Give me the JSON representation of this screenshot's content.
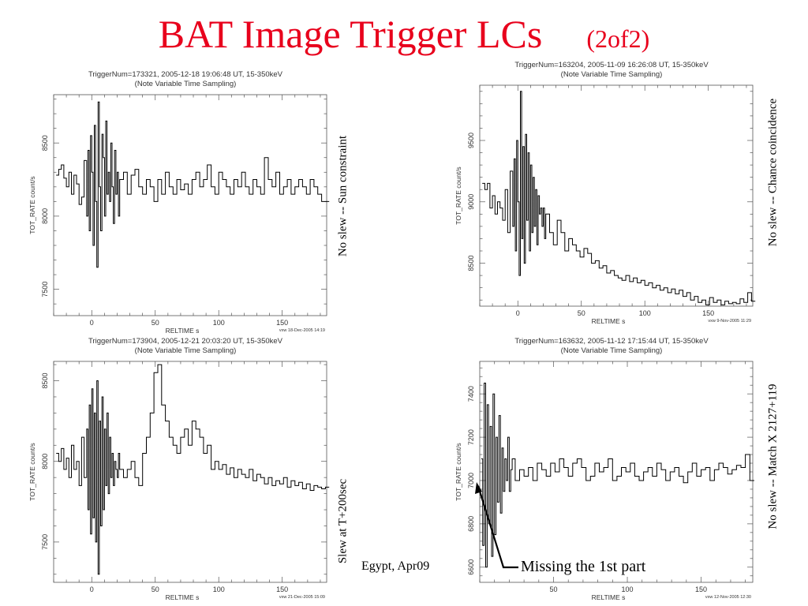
{
  "title": {
    "main": "BAT  Image Trigger  LCs",
    "sub": "(2of2)"
  },
  "footer": "Egypt, Apr09",
  "annotation": "Missing the 1st part",
  "chart_data": [
    {
      "type": "line",
      "title": "TriggerNum=173321, 2005-12-18 19:06:48 UT, 15-350keV",
      "subtitle": "(Note Variable Time Sampling)",
      "xlabel": "RELTIME  s",
      "ylabel": "TOT_RATE  count/s",
      "xlim": [
        -30,
        185
      ],
      "ylim": [
        7320,
        8830
      ],
      "xticks": [
        0,
        50,
        100,
        150
      ],
      "yticks": [
        7500,
        8000,
        8500
      ],
      "side_note": "No slew -- Sun constraint",
      "corner_stamp": "vxw 18-Dec-2005 14:19",
      "x": [
        -28,
        -26,
        -24,
        -22,
        -20,
        -18,
        -16,
        -14,
        -12,
        -10,
        -8,
        -6,
        -4,
        -3,
        -2,
        -1,
        0,
        1,
        2,
        3,
        4,
        5,
        6,
        7,
        8,
        9,
        10,
        11,
        12,
        13,
        14,
        15,
        16,
        17,
        18,
        19,
        20,
        21,
        22,
        25,
        28,
        31,
        34,
        37,
        40,
        43,
        46,
        49,
        52,
        55,
        58,
        61,
        64,
        67,
        70,
        73,
        76,
        79,
        82,
        85,
        88,
        91,
        94,
        97,
        100,
        103,
        106,
        109,
        112,
        115,
        118,
        121,
        124,
        127,
        130,
        133,
        136,
        139,
        142,
        145,
        148,
        151,
        154,
        157,
        160,
        163,
        166,
        169,
        172,
        175,
        178,
        181,
        184
      ],
      "values": [
        8280,
        8320,
        8350,
        8260,
        8200,
        8300,
        8150,
        8280,
        8220,
        8080,
        8130,
        8380,
        8000,
        8450,
        7900,
        8550,
        8300,
        7800,
        8620,
        8100,
        7650,
        8780,
        8200,
        7900,
        8560,
        8400,
        8000,
        8650,
        8150,
        8300,
        8100,
        8500,
        8200,
        7950,
        8450,
        8150,
        8300,
        8000,
        8250,
        8300,
        8150,
        8280,
        8320,
        8200,
        8150,
        8250,
        8200,
        8100,
        8250,
        8150,
        8300,
        8200,
        8150,
        8250,
        8180,
        8220,
        8150,
        8250,
        8300,
        8200,
        8250,
        8350,
        8200,
        8150,
        8300,
        8250,
        8200,
        8150,
        8250,
        8200,
        8300,
        8200,
        8150,
        8250,
        8200,
        8150,
        8400,
        8250,
        8200,
        8300,
        8150,
        8200,
        8250,
        8150,
        8200,
        8250,
        8200,
        8150,
        8250,
        8200,
        8150,
        8100,
        8100
      ]
    },
    {
      "type": "line",
      "title": "TriggerNum=163204, 2005-11-09 16:26:08 UT, 15-350keV",
      "subtitle": "(Note Variable Time Sampling)",
      "xlabel": "RELTIME  s",
      "ylabel": "TOT_RATE  count/s",
      "xlim": [
        -30,
        185
      ],
      "ylim": [
        8150,
        9950
      ],
      "xticks": [
        0,
        50,
        100,
        150
      ],
      "yticks": [
        8500,
        9000,
        9500
      ],
      "side_note": "No slew -- Chance coincidence",
      "corner_stamp": "vxw 9-Nov-2005 11:29",
      "x": [
        -28,
        -26,
        -24,
        -22,
        -20,
        -18,
        -16,
        -14,
        -12,
        -10,
        -8,
        -6,
        -4,
        -3,
        -2,
        -1,
        0,
        1,
        2,
        3,
        4,
        5,
        6,
        7,
        8,
        9,
        10,
        11,
        12,
        13,
        14,
        15,
        16,
        17,
        18,
        19,
        20,
        21,
        22,
        25,
        28,
        31,
        34,
        37,
        40,
        43,
        46,
        49,
        52,
        55,
        58,
        61,
        64,
        67,
        70,
        73,
        76,
        79,
        82,
        85,
        88,
        91,
        94,
        97,
        100,
        103,
        106,
        109,
        112,
        115,
        118,
        121,
        124,
        127,
        130,
        133,
        136,
        139,
        142,
        145,
        148,
        151,
        154,
        157,
        160,
        163,
        166,
        169,
        172,
        175,
        178,
        181,
        184
      ],
      "values": [
        9150,
        9100,
        9150,
        8950,
        9050,
        8900,
        9000,
        8950,
        8850,
        9100,
        8750,
        9250,
        8800,
        9350,
        8600,
        9500,
        9000,
        8400,
        9900,
        8700,
        9450,
        8500,
        9550,
        8850,
        9400,
        8600,
        9300,
        8750,
        9200,
        8800,
        9100,
        8650,
        9050,
        8900,
        8950,
        8800,
        8950,
        8700,
        8900,
        8750,
        8650,
        8850,
        8750,
        8600,
        8700,
        8650,
        8600,
        8550,
        8620,
        8580,
        8500,
        8520,
        8460,
        8480,
        8420,
        8440,
        8400,
        8380,
        8360,
        8400,
        8350,
        8380,
        8340,
        8360,
        8320,
        8340,
        8300,
        8320,
        8280,
        8300,
        8260,
        8290,
        8250,
        8280,
        8230,
        8260,
        8200,
        8230,
        8180,
        8200,
        8160,
        8220,
        8180,
        8200,
        8160,
        8190,
        8170,
        8180,
        8170,
        8210,
        8180,
        8260,
        8190
      ]
    },
    {
      "type": "line",
      "title": "TriggerNum=173904, 2005-12-21 20:03:20 UT, 15-350keV",
      "subtitle": "(Note Variable Time Sampling)",
      "xlabel": "RELTIME  s",
      "ylabel": "TOT_RATE  count/s",
      "xlim": [
        -30,
        185
      ],
      "ylim": [
        7250,
        8620
      ],
      "xticks": [
        0,
        50,
        100,
        150
      ],
      "yticks": [
        7500,
        8000,
        8500
      ],
      "side_note": "Slew at T+200sec",
      "corner_stamp": "vxw 21-Dec-2005 15:09",
      "x": [
        -28,
        -26,
        -24,
        -22,
        -20,
        -18,
        -16,
        -14,
        -12,
        -10,
        -8,
        -6,
        -4,
        -3,
        -2,
        -1,
        0,
        1,
        2,
        3,
        4,
        5,
        6,
        7,
        8,
        9,
        10,
        11,
        12,
        13,
        14,
        15,
        16,
        17,
        18,
        19,
        20,
        21,
        22,
        25,
        28,
        31,
        34,
        37,
        40,
        43,
        46,
        49,
        52,
        55,
        58,
        61,
        64,
        67,
        70,
        73,
        76,
        79,
        82,
        85,
        88,
        91,
        94,
        97,
        100,
        103,
        106,
        109,
        112,
        115,
        118,
        121,
        124,
        127,
        130,
        133,
        136,
        139,
        142,
        145,
        148,
        151,
        154,
        157,
        160,
        163,
        166,
        169,
        172,
        175,
        178,
        181,
        184
      ],
      "values": [
        8050,
        8000,
        8080,
        7950,
        8020,
        7900,
        8100,
        7950,
        8000,
        7850,
        8150,
        7900,
        8200,
        7700,
        8350,
        7550,
        8450,
        7650,
        8300,
        7500,
        8500,
        7300,
        8250,
        7600,
        8400,
        7700,
        8200,
        7850,
        8300,
        7800,
        8150,
        7900,
        8050,
        7850,
        8000,
        7950,
        7900,
        8050,
        7950,
        7900,
        7950,
        8000,
        7900,
        7850,
        8050,
        8150,
        8300,
        8550,
        8600,
        8350,
        8250,
        8150,
        8100,
        8050,
        8150,
        8200,
        8100,
        8250,
        8200,
        8150,
        8050,
        8100,
        7950,
        8000,
        7950,
        7980,
        7920,
        7960,
        7900,
        7950,
        7920,
        7900,
        7950,
        7880,
        7920,
        7900,
        7860,
        7900,
        7850,
        7880,
        7860,
        7900,
        7840,
        7880,
        7850,
        7870,
        7830,
        7860,
        7820,
        7850,
        7840,
        7830,
        7840
      ]
    },
    {
      "type": "line",
      "title": "TriggerNum=163632, 2005-11-12 17:15:44 UT, 15-350keV",
      "subtitle": "(Note Variable Time Sampling)",
      "xlabel": "RELTIME  s",
      "ylabel": "TOT_RATE  count/s",
      "xlim": [
        0,
        185
      ],
      "ylim": [
        6530,
        7550
      ],
      "xticks": [
        50,
        100,
        150
      ],
      "yticks": [
        6600,
        6800,
        7000,
        7200,
        7400
      ],
      "side_note": "No slew -- Match X 2127+119",
      "corner_stamp": "vxw 12-Nov-2005 12:30",
      "x": [
        1,
        2,
        3,
        4,
        5,
        6,
        7,
        8,
        9,
        10,
        11,
        12,
        13,
        14,
        15,
        16,
        17,
        18,
        19,
        20,
        21,
        22,
        24,
        27,
        30,
        33,
        36,
        39,
        42,
        45,
        48,
        51,
        54,
        57,
        60,
        63,
        66,
        69,
        72,
        75,
        78,
        81,
        84,
        87,
        90,
        93,
        96,
        99,
        102,
        105,
        108,
        111,
        114,
        117,
        120,
        123,
        126,
        129,
        132,
        135,
        138,
        141,
        144,
        147,
        150,
        153,
        156,
        159,
        162,
        165,
        168,
        171,
        174,
        177,
        180,
        183
      ],
      "values": [
        7100,
        6700,
        7450,
        6600,
        7350,
        6800,
        7250,
        6650,
        7400,
        6750,
        7200,
        6900,
        7300,
        6850,
        7150,
        6950,
        7100,
        7000,
        7200,
        6950,
        7050,
        7100,
        7000,
        7050,
        7020,
        7060,
        7000,
        7080,
        7050,
        7020,
        7080,
        7040,
        7100,
        7060,
        7020,
        7080,
        7100,
        7060,
        7000,
        7020,
        7080,
        7040,
        7060,
        7100,
        7000,
        7020,
        7060,
        7040,
        7080,
        7020,
        7000,
        7040,
        7060,
        7020,
        7080,
        7050,
        7000,
        7040,
        7060,
        7020,
        6990,
        7040,
        7080,
        7020,
        7050,
        7060,
        7000,
        7050,
        7080,
        7060,
        7030,
        7050,
        7070,
        7060,
        7120,
        7000
      ]
    }
  ]
}
